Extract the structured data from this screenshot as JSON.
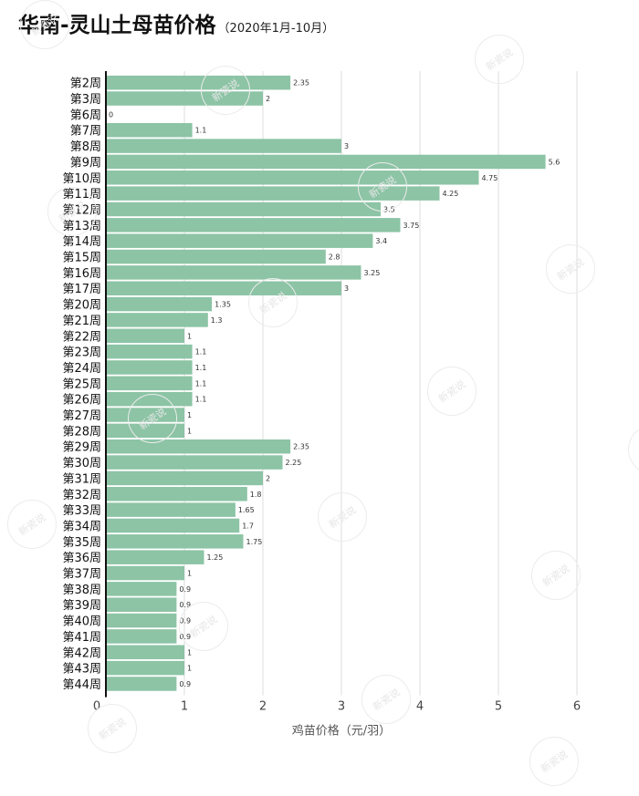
{
  "chart_data": {
    "type": "bar",
    "orientation": "horizontal",
    "title": "华南-灵山土母苗价格",
    "subtitle": "（2020年1月-10月）",
    "xlabel": "鸡苗价格（元/羽）",
    "ylabel": "",
    "xlim": [
      0,
      6
    ],
    "x_ticks": [
      "0",
      "1",
      "2",
      "3",
      "4",
      "5",
      "6"
    ],
    "categories": [
      "第2周",
      "第3周",
      "第6周",
      "第7周",
      "第8周",
      "第9周",
      "第10周",
      "第11周",
      "第12周",
      "第13周",
      "第14周",
      "第15周",
      "第16周",
      "第17周",
      "第20周",
      "第21周",
      "第22周",
      "第23周",
      "第24周",
      "第25周",
      "第26周",
      "第27周",
      "第28周",
      "第29周",
      "第30周",
      "第31周",
      "第32周",
      "第33周",
      "第34周",
      "第35周",
      "第36周",
      "第37周",
      "第38周",
      "第39周",
      "第40周",
      "第41周",
      "第42周",
      "第43周",
      "第44周"
    ],
    "values": [
      2.35,
      2,
      0,
      1.1,
      3,
      5.6,
      4.75,
      4.25,
      3.5,
      3.75,
      3.4,
      2.8,
      3.25,
      3,
      1.35,
      1.3,
      1,
      1.1,
      1.1,
      1.1,
      1.1,
      1,
      1,
      2.35,
      2.25,
      2,
      1.8,
      1.65,
      1.7,
      1.75,
      1.25,
      1,
      0.9,
      0.9,
      0.9,
      0.9,
      1,
      1,
      0.9
    ],
    "value_labels": [
      "2.35",
      "2",
      "0",
      "1.1",
      "3",
      "5.6",
      "4.75",
      "4.25",
      "3.5",
      "3.75",
      "3.4",
      "2.8",
      "3.25",
      "3",
      "1.35",
      "1.3",
      "1",
      "1.1",
      "1.1",
      "1.1",
      "1.1",
      "1",
      "1",
      "2.35",
      "2.25",
      "2",
      "1.8",
      "1.65",
      "1.7",
      "1.75",
      "1.25",
      "1",
      "0.9",
      "0.9",
      "0.9",
      "0.9",
      "1",
      "1",
      "0.9"
    ],
    "grid": true,
    "legend": "none",
    "bar_color": "#8cc4a5",
    "grid_color": "#dcdcdc",
    "axis_color": "#111111"
  },
  "watermark": "新瓷说"
}
